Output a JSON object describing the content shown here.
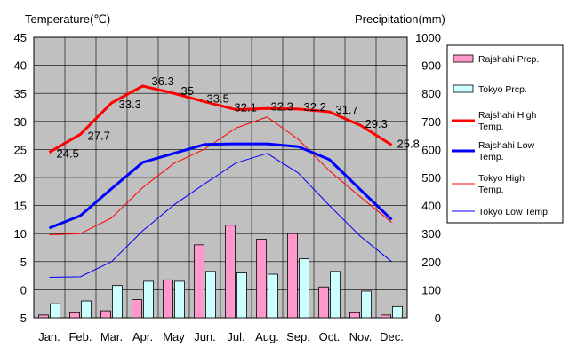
{
  "chart_data": {
    "type": "bar+line",
    "y_left_title": "Temperature(℃)",
    "y_right_title": "Precipitation(mm)",
    "y_left_range": [
      -5,
      45
    ],
    "y_left_ticks": [
      "45",
      "40",
      "35",
      "30",
      "25",
      "20",
      "15",
      "10",
      "5",
      "0",
      "-5"
    ],
    "y_right_range": [
      0,
      1000
    ],
    "y_right_ticks": [
      "1000",
      "900",
      "800",
      "700",
      "600",
      "500",
      "400",
      "300",
      "200",
      "100",
      "0"
    ],
    "months": [
      "Jan.",
      "Feb.",
      "Mar.",
      "Apr.",
      "May",
      "Jun.",
      "Jul.",
      "Aug.",
      "Sep.",
      "Oct.",
      "Nov.",
      "Dec."
    ],
    "bar_series": [
      {
        "name": "Rajshahi Prcp.",
        "color": "#ff99cc",
        "values": [
          10,
          18,
          25,
          65,
          135,
          260,
          330,
          280,
          300,
          110,
          18,
          10
        ]
      },
      {
        "name": "Tokyo Prcp.",
        "color": "#ccffff",
        "values": [
          50,
          60,
          115,
          130,
          130,
          165,
          160,
          155,
          210,
          165,
          95,
          40
        ]
      }
    ],
    "line_series": [
      {
        "name": "Rajshahi High Temp.",
        "color": "#ff0000",
        "width": "thick",
        "values": [
          24.5,
          27.7,
          33.3,
          36.3,
          35.0,
          33.5,
          32.1,
          32.3,
          32.2,
          31.7,
          29.3,
          25.8
        ],
        "labels": [
          "24.5",
          "27.7",
          "33.3",
          "36.3",
          "35",
          "33.5",
          "32.1",
          "32.3",
          "32.2",
          "31.7",
          "29.3",
          "25.8"
        ]
      },
      {
        "name": "Rajshahi Low Temp.",
        "color": "#0000ff",
        "width": "thick",
        "values": [
          11.0,
          13.2,
          18.0,
          22.7,
          24.3,
          25.9,
          26.0,
          26.0,
          25.5,
          23.2,
          17.8,
          12.5
        ]
      },
      {
        "name": "Tokyo High Temp.",
        "color": "#ff0000",
        "width": "thin",
        "values": [
          9.8,
          10.0,
          12.8,
          18.2,
          22.5,
          25.1,
          28.8,
          30.8,
          26.8,
          21.2,
          16.5,
          12.0
        ]
      },
      {
        "name": "Tokyo Low Temp.",
        "color": "#0000ff",
        "width": "thin",
        "values": [
          2.2,
          2.3,
          5.0,
          10.5,
          15.1,
          18.9,
          22.6,
          24.3,
          20.8,
          15.0,
          9.5,
          5.0
        ]
      }
    ],
    "legend": [
      {
        "name": "Rajshahi Prcp.",
        "kind": "bar",
        "color": "#ff99cc"
      },
      {
        "name": "Tokyo Prcp.",
        "kind": "bar",
        "color": "#ccffff"
      },
      {
        "name": "Rajshahi High Temp.",
        "kind": "thick-line",
        "color": "#ff0000"
      },
      {
        "name": "Rajshahi Low Temp.",
        "kind": "thick-line",
        "color": "#0000ff"
      },
      {
        "name": "Tokyo High Temp.",
        "kind": "thin-line",
        "color": "#ff0000"
      },
      {
        "name": "Tokyo Low Temp.",
        "kind": "thin-line",
        "color": "#0000ff"
      }
    ],
    "plot_background": "#c0c0c0",
    "grid": true
  }
}
